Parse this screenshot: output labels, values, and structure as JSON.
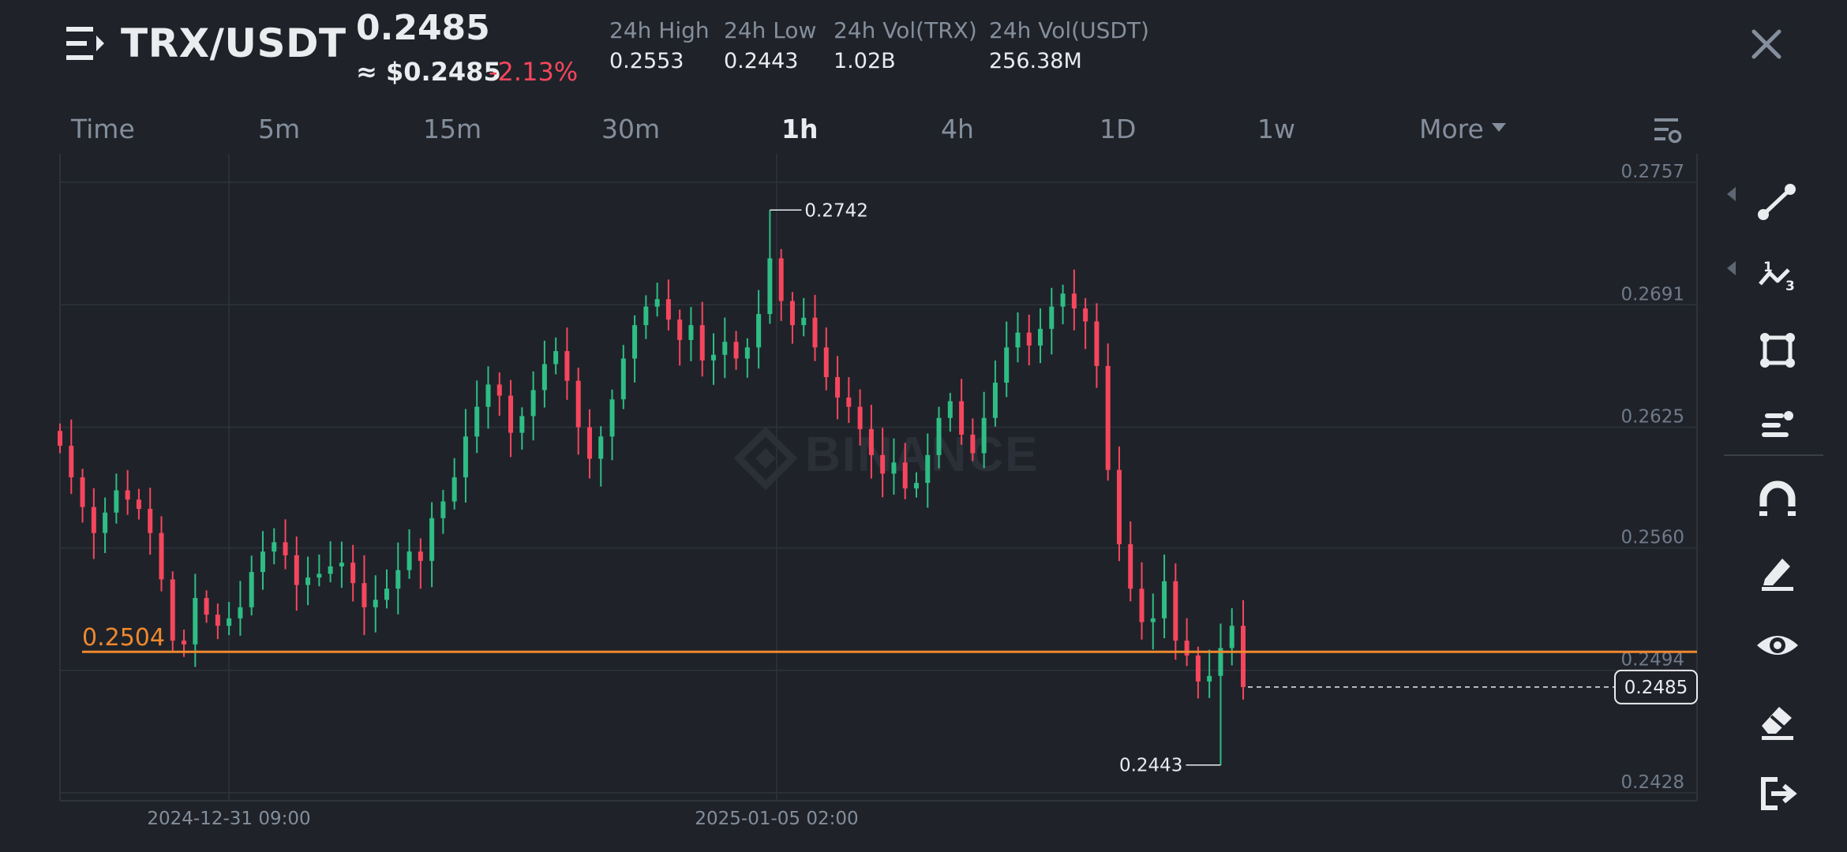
{
  "header": {
    "pair": "TRX/USDT",
    "last_price": "0.2485",
    "usd_price": "≈ $0.2485",
    "change_pct": "-2.13%",
    "stats": [
      {
        "label": "24h High",
        "value": "0.2553"
      },
      {
        "label": "24h Low",
        "value": "0.2443"
      },
      {
        "label": "24h Vol(TRX)",
        "value": "1.02B"
      },
      {
        "label": "24h Vol(USDT)",
        "value": "256.38M"
      }
    ]
  },
  "timeframes": {
    "items": [
      "Time",
      "5m",
      "15m",
      "30m",
      "1h",
      "4h",
      "1D",
      "1w",
      "More"
    ],
    "active": "1h"
  },
  "icons": {
    "menu": "menu-icon",
    "close": "close-icon",
    "chart_settings": "chart-settings-icon",
    "tools": [
      "trend-line-icon",
      "fibonacci-icon",
      "shape-icon",
      "text-tool-icon",
      "magnet-icon",
      "pencil-icon",
      "eye-icon",
      "eraser-icon",
      "exit-icon"
    ]
  },
  "colors": {
    "up": "#2ebd85",
    "down": "#f6465d",
    "alert_line": "#f0882e",
    "background": "#1f2329",
    "grid": "#2e333b"
  },
  "chart_data": {
    "type": "candlestick",
    "watermark": "BINANCE",
    "y_ticks": [
      "0.2757",
      "0.2691",
      "0.2625",
      "0.2560",
      "0.2494",
      "0.2428"
    ],
    "ylim": [
      0.2428,
      0.2757
    ],
    "x_ticks": [
      "2024-12-31 09:00",
      "2025-01-05 02:00"
    ],
    "high_marker": "0.2742",
    "low_marker": "0.2443",
    "alert_level": "0.2504",
    "current_price": "0.2485",
    "closes": [
      0.2615,
      0.2598,
      0.2582,
      0.2568,
      0.2579,
      0.2591,
      0.2586,
      0.2581,
      0.2568,
      0.2543,
      0.251,
      0.2508,
      0.2533,
      0.2524,
      0.2518,
      0.2522,
      0.2528,
      0.2547,
      0.2558,
      0.2563,
      0.2556,
      0.254,
      0.2544,
      0.2546,
      0.255,
      0.2552,
      0.2541,
      0.2528,
      0.2532,
      0.2538,
      0.2548,
      0.2558,
      0.2553,
      0.2576,
      0.2585,
      0.2598,
      0.262,
      0.2636,
      0.2648,
      0.2642,
      0.2622,
      0.2631,
      0.2645,
      0.2659,
      0.2666,
      0.265,
      0.2625,
      0.2608,
      0.262,
      0.264,
      0.2662,
      0.268,
      0.269,
      0.2694,
      0.2683,
      0.2672,
      0.268,
      0.2661,
      0.2664,
      0.2671,
      0.2662,
      0.2668,
      0.2686,
      0.2716,
      0.2693,
      0.268,
      0.2684,
      0.2668,
      0.2652,
      0.2641,
      0.2636,
      0.2624,
      0.261,
      0.26,
      0.2606,
      0.2592,
      0.2595,
      0.261,
      0.263,
      0.2639,
      0.2621,
      0.2611,
      0.263,
      0.2649,
      0.2668,
      0.2676,
      0.2669,
      0.2678,
      0.269,
      0.2697,
      0.2689,
      0.2682,
      0.2658,
      0.2602,
      0.2562,
      0.2538,
      0.252,
      0.2522,
      0.2542,
      0.251,
      0.2502,
      0.2488,
      0.2491,
      0.2506,
      0.2518,
      0.2485
    ]
  }
}
